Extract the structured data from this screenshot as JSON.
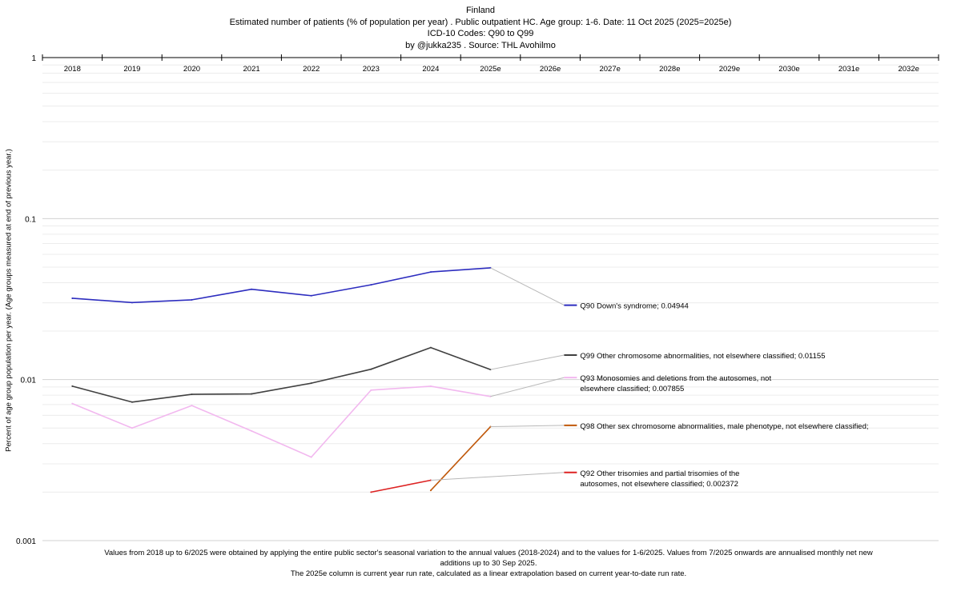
{
  "header": {
    "country": "Finland",
    "subtitle": "Estimated number of patients  (% of population per year) . Public outpatient HC. Age group: 1-6. Date: 11 Oct 2025 (2025=2025e)",
    "codes": "ICD-10 Codes: Q90 to Q99",
    "byline": "by @jukka235 . Source: THL Avohilmo"
  },
  "chart_data": {
    "type": "line",
    "scale": "log",
    "ylim": [
      0.001,
      1
    ],
    "yticks": [
      {
        "value": 1,
        "label": "1"
      },
      {
        "value": 0.1,
        "label": "0.1"
      },
      {
        "value": 0.01,
        "label": "0.01"
      },
      {
        "value": 0.001,
        "label": "0.001"
      }
    ],
    "ylabel": "Percent of age group population per year. (Age groups measured at end of previous year.)",
    "categories": [
      "2018",
      "2019",
      "2020",
      "2021",
      "2022",
      "2023",
      "2024",
      "2025e",
      "2026e",
      "2027e",
      "2028e",
      "2029e",
      "2030e",
      "2031e",
      "2032e"
    ],
    "series": [
      {
        "code": "Q90",
        "color": "#2d2dbf",
        "label_anchor": 0.029,
        "values": [
          0.032,
          0.0301,
          0.0313,
          0.0364,
          0.0332,
          0.0388,
          0.0466,
          0.04944,
          null,
          null,
          null,
          null,
          null,
          null,
          null
        ],
        "label_lines": [
          "Q90 Down's syndrome; 0.04944"
        ]
      },
      {
        "code": "Q99",
        "color": "#404040",
        "label_anchor": 0.0142,
        "values": [
          0.0091,
          0.00725,
          0.0081,
          0.00815,
          0.0095,
          0.0116,
          0.0158,
          0.01155,
          null,
          null,
          null,
          null,
          null,
          null,
          null
        ],
        "label_lines": [
          "Q99 Other chromosome abnormalities, not elsewhere classified; 0.01155"
        ]
      },
      {
        "code": "Q93",
        "color": "#f2b8ef",
        "label_anchor": 0.0103,
        "values": [
          0.0071,
          0.005,
          0.0069,
          0.0048,
          0.0033,
          0.0086,
          0.0091,
          0.007855,
          null,
          null,
          null,
          null,
          null,
          null,
          null
        ],
        "label_lines": [
          "Q93 Monosomies and deletions from the autosomes, not",
          "elsewhere classified; 0.007855"
        ]
      },
      {
        "code": "Q98",
        "color": "#c0580a",
        "label_anchor": 0.0052,
        "values": [
          null,
          null,
          null,
          null,
          null,
          null,
          0.00205,
          0.0051,
          null,
          null,
          null,
          null,
          null,
          null,
          null
        ],
        "label_lines": [
          "Q98 Other sex chromosome abnormalities, male phenotype, not elsewhere classified;"
        ]
      },
      {
        "code": "Q92",
        "color": "#dd2222",
        "label_anchor": 0.00265,
        "values": [
          null,
          null,
          null,
          null,
          null,
          0.002,
          0.002372,
          null,
          null,
          null,
          null,
          null,
          null,
          null,
          null
        ],
        "label_lines": [
          "Q92 Other trisomies and partial trisomies of the",
          "autosomes, not elsewhere classified; 0.002372"
        ]
      }
    ]
  },
  "footer": {
    "note1": "Values from 2018 up to 6/2025 were obtained by applying the entire public sector's seasonal variation to the annual values (2018-2024) and to the values for 1-6/2025. Values from 7/2025 onwards are annualised monthly net new additions up to 30 Sep 2025.",
    "note2": "The 2025e column is current year run rate, calculated as a linear extrapolation based on current year-to-date run rate."
  }
}
